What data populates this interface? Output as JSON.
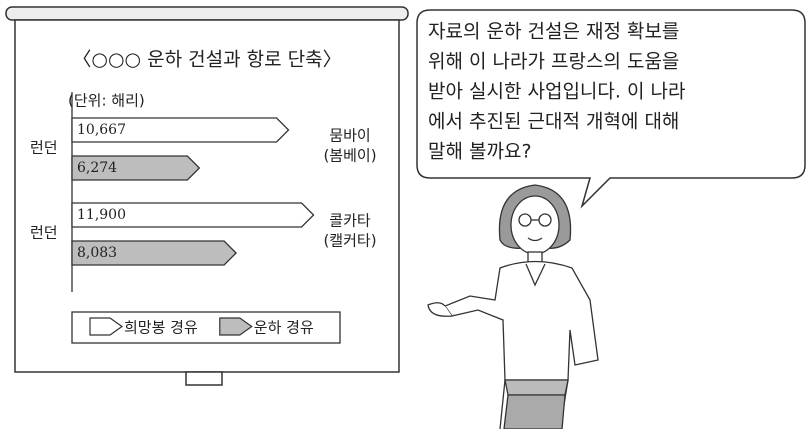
{
  "chart_data": {
    "type": "arrow-bar",
    "title": "〈○○○ 운하 건설과 항로 단축〉",
    "unit_label": "(단위: 해리)",
    "origins": [
      "런던",
      "런던"
    ],
    "categories": [
      [
        "뭄바이",
        "(봄베이)"
      ],
      [
        "콜카타",
        "(캘커타)"
      ]
    ],
    "series": [
      {
        "name": "희망봉 경유",
        "color": "#ffffff",
        "values": [
          10667,
          11900
        ],
        "value_labels": [
          "10,667",
          "11,900"
        ]
      },
      {
        "name": "운하 경유",
        "color": "#bdbdbd",
        "values": [
          6274,
          8083
        ],
        "value_labels": [
          "6,274",
          "8,083"
        ]
      }
    ]
  },
  "speech_bubble": {
    "lines": [
      "자료의 운하 건설은 재정 확보를",
      "위해  이 나라가 프랑스의 도움을",
      "받아 실시한 사업입니다. 이 나라",
      "에서 추진된 근대적 개혁에 대해",
      "말해 볼까요?"
    ]
  }
}
